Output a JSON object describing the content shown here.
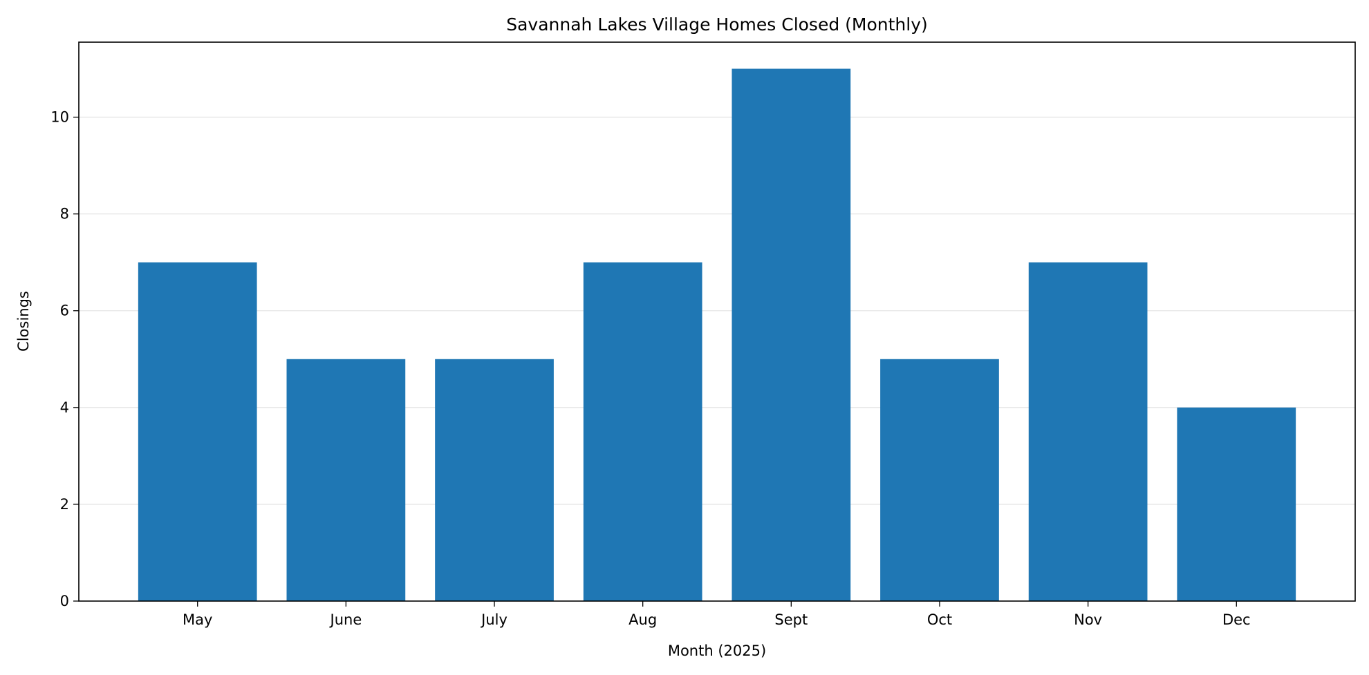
{
  "chart_data": {
    "type": "bar",
    "title": "Savannah Lakes Village Homes Closed (Monthly)",
    "xlabel": "Month (2025)",
    "ylabel": "Closings",
    "categories": [
      "May",
      "June",
      "July",
      "Aug",
      "Sept",
      "Oct",
      "Nov",
      "Dec"
    ],
    "values": [
      7,
      5,
      5,
      7,
      11,
      5,
      7,
      4
    ],
    "ylim": [
      0,
      11.55
    ],
    "yticks": [
      0,
      2,
      4,
      6,
      8,
      10
    ],
    "grid": "y-axis, light",
    "color": "#1f77b4",
    "legend": "none"
  }
}
